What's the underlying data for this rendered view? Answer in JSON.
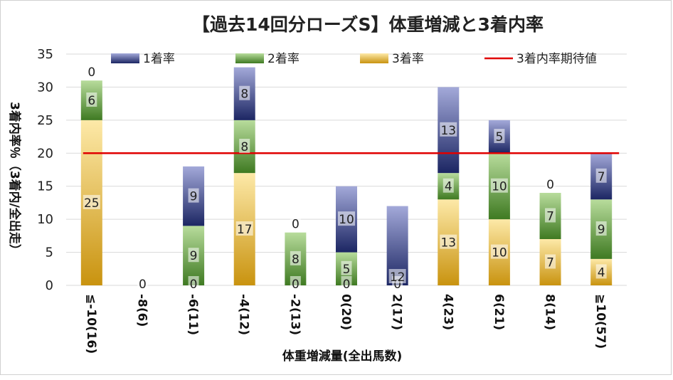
{
  "chart_data": {
    "type": "bar",
    "stacked": true,
    "title": "【過去14回分ローズS】体重増減と3着内率",
    "xlabel": "体重増減量(全出馬数)",
    "ylabel": "3着内率％（3着内/全出走）",
    "ylim": [
      0,
      35
    ],
    "yticks": [
      "0",
      "5",
      "10",
      "15",
      "20",
      "25",
      "30",
      "35"
    ],
    "grid": true,
    "legend_position": "top",
    "categories": [
      "≦-10(16)",
      "-8(6)",
      "-6(11)",
      "-4(12)",
      "-2(13)",
      "0(20)",
      "2(17)",
      "4(23)",
      "6(21)",
      "8(14)",
      "≧10(57)"
    ],
    "series": [
      {
        "name": "3着率",
        "color": "#d9a520",
        "values": [
          25,
          0,
          0,
          17,
          0,
          0,
          0,
          13,
          10,
          7,
          4
        ]
      },
      {
        "name": "2着率",
        "color": "#5a9e3a",
        "values": [
          6,
          0,
          9,
          8,
          8,
          5,
          0,
          4,
          10,
          7,
          9
        ]
      },
      {
        "name": "1着率",
        "color": "#2f3e8c",
        "values": [
          0,
          0,
          9,
          8,
          0,
          10,
          12,
          13,
          5,
          0,
          7
        ]
      }
    ],
    "reference_line": {
      "name": "3着内率期待値",
      "value": 20,
      "color": "#e00000"
    },
    "bar_labels": [
      [
        "25",
        "6",
        "0"
      ],
      [
        "0"
      ],
      [
        "0",
        "9",
        "9"
      ],
      [
        "17",
        "8",
        "8"
      ],
      [
        "0",
        "8",
        "0"
      ],
      [
        "0",
        "5",
        "10"
      ],
      [
        "0",
        "12"
      ],
      [
        "13",
        "4",
        "13"
      ],
      [
        "10",
        "10",
        "5"
      ],
      [
        "7",
        "7",
        "0"
      ],
      [
        "4",
        "9",
        "7"
      ]
    ]
  }
}
